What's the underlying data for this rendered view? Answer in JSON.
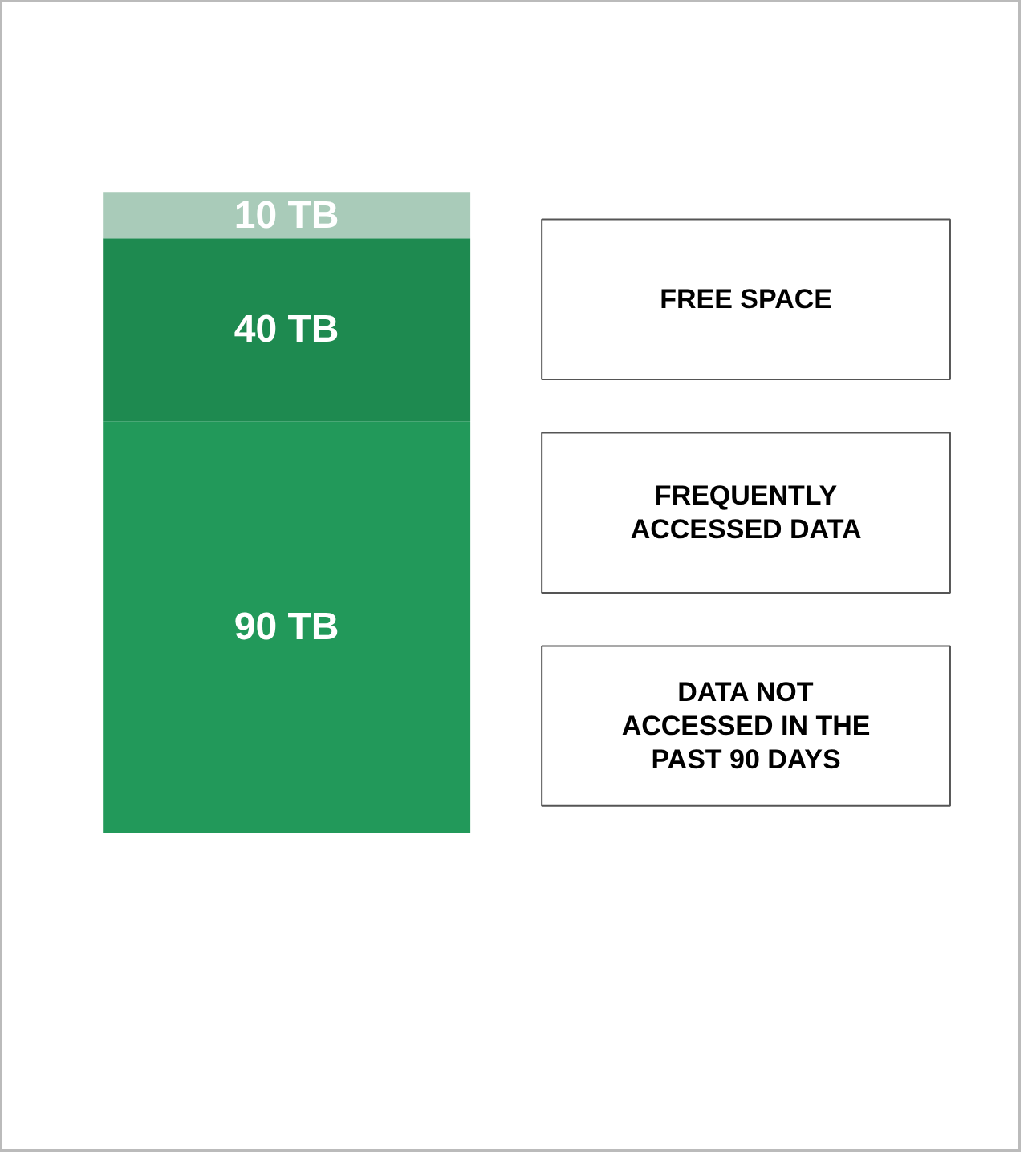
{
  "chart_data": {
    "type": "bar",
    "stacked": true,
    "categories": [
      null
    ],
    "series": [
      {
        "name": "DATA NOT ACCESSED IN THE PAST 90 DAYS",
        "color": "#22995a",
        "values": [
          90
        ],
        "value_labels": [
          "90 TB"
        ]
      },
      {
        "name": "FREQUENTLY ACCESSED DATA",
        "color": "#1e8a50",
        "values": [
          40
        ],
        "value_labels": [
          "40 TB"
        ]
      },
      {
        "name": "FREE SPACE",
        "color": "#a9cbb9",
        "values": [
          10
        ],
        "value_labels": [
          "10 TB"
        ]
      }
    ]
  }
}
